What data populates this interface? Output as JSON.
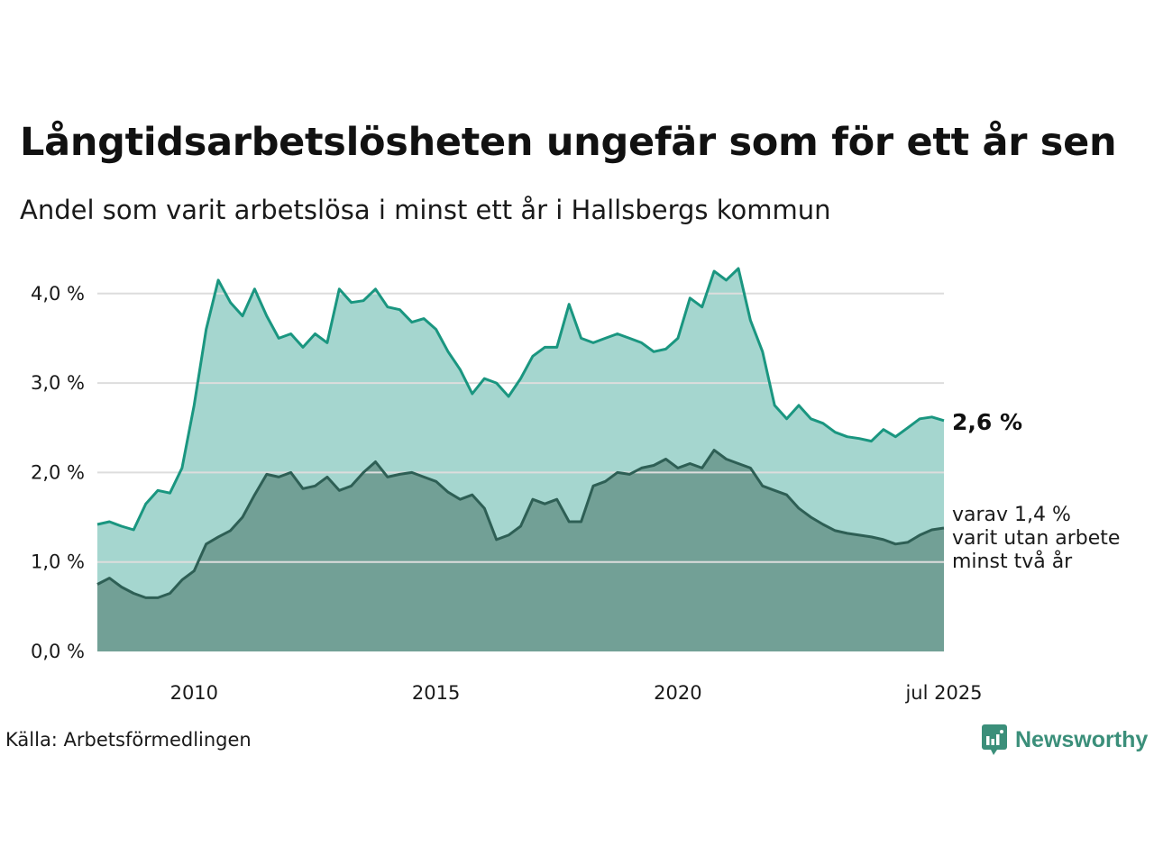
{
  "title": "Långtidsarbetslösheten ungefär som för ett år sen",
  "subtitle": "Andel som varit arbetslösa i minst ett år i Hallsbergs kommun",
  "source": "Källa: Arbetsförmedlingen",
  "brand": "Newsworthy",
  "colors": {
    "series1_line": "#1a9680",
    "series1_fill": "#a5d6cf",
    "series2_line": "#2e5f55",
    "series2_fill": "#72a096",
    "grid": "#dddddd",
    "brand": "#3b8f7a"
  },
  "chart_data": {
    "type": "area",
    "title": "Långtidsarbetslösheten ungefär som för ett år sen",
    "subtitle": "Andel som varit arbetslösa i minst ett år i Hallsbergs kommun",
    "xlim": [
      2008.0,
      2025.5
    ],
    "ylim": [
      0,
      4.3
    ],
    "yticks": [
      0,
      1,
      2,
      3,
      4
    ],
    "ytick_labels": [
      "0,0 %",
      "1,0 %",
      "2,0 %",
      "3,0 %",
      "4,0 %"
    ],
    "xticks": [
      2010,
      2015,
      2020,
      2025.5
    ],
    "xtick_labels": [
      "2010",
      "2015",
      "2020",
      "jul 2025"
    ],
    "grid": true,
    "series": [
      {
        "name": "Andel som varit arbetslösa i minst ett år",
        "end_label": "2,6 %",
        "points": [
          [
            2008.0,
            1.42
          ],
          [
            2008.25,
            1.45
          ],
          [
            2008.5,
            1.4
          ],
          [
            2008.75,
            1.36
          ],
          [
            2009.0,
            1.65
          ],
          [
            2009.25,
            1.8
          ],
          [
            2009.5,
            1.77
          ],
          [
            2009.75,
            2.05
          ],
          [
            2010.0,
            2.75
          ],
          [
            2010.25,
            3.6
          ],
          [
            2010.5,
            4.15
          ],
          [
            2010.75,
            3.9
          ],
          [
            2011.0,
            3.75
          ],
          [
            2011.25,
            4.05
          ],
          [
            2011.5,
            3.75
          ],
          [
            2011.75,
            3.5
          ],
          [
            2012.0,
            3.55
          ],
          [
            2012.25,
            3.4
          ],
          [
            2012.5,
            3.55
          ],
          [
            2012.75,
            3.45
          ],
          [
            2013.0,
            4.05
          ],
          [
            2013.25,
            3.9
          ],
          [
            2013.5,
            3.92
          ],
          [
            2013.75,
            4.05
          ],
          [
            2014.0,
            3.85
          ],
          [
            2014.25,
            3.82
          ],
          [
            2014.5,
            3.68
          ],
          [
            2014.75,
            3.72
          ],
          [
            2015.0,
            3.6
          ],
          [
            2015.25,
            3.35
          ],
          [
            2015.5,
            3.15
          ],
          [
            2015.75,
            2.88
          ],
          [
            2016.0,
            3.05
          ],
          [
            2016.25,
            3.0
          ],
          [
            2016.5,
            2.85
          ],
          [
            2016.75,
            3.05
          ],
          [
            2017.0,
            3.3
          ],
          [
            2017.25,
            3.4
          ],
          [
            2017.5,
            3.4
          ],
          [
            2017.75,
            3.88
          ],
          [
            2018.0,
            3.5
          ],
          [
            2018.25,
            3.45
          ],
          [
            2018.5,
            3.5
          ],
          [
            2018.75,
            3.55
          ],
          [
            2019.0,
            3.5
          ],
          [
            2019.25,
            3.45
          ],
          [
            2019.5,
            3.35
          ],
          [
            2019.75,
            3.38
          ],
          [
            2020.0,
            3.5
          ],
          [
            2020.25,
            3.95
          ],
          [
            2020.5,
            3.85
          ],
          [
            2020.75,
            4.25
          ],
          [
            2021.0,
            4.15
          ],
          [
            2021.25,
            4.28
          ],
          [
            2021.5,
            3.7
          ],
          [
            2021.75,
            3.35
          ],
          [
            2022.0,
            2.75
          ],
          [
            2022.25,
            2.6
          ],
          [
            2022.5,
            2.75
          ],
          [
            2022.75,
            2.6
          ],
          [
            2023.0,
            2.55
          ],
          [
            2023.25,
            2.45
          ],
          [
            2023.5,
            2.4
          ],
          [
            2023.75,
            2.38
          ],
          [
            2024.0,
            2.35
          ],
          [
            2024.25,
            2.48
          ],
          [
            2024.5,
            2.4
          ],
          [
            2024.75,
            2.5
          ],
          [
            2025.0,
            2.6
          ],
          [
            2025.25,
            2.62
          ],
          [
            2025.5,
            2.58
          ]
        ]
      },
      {
        "name": "varav 1,4 % varit utan arbete minst två år",
        "end_label_lines": [
          "varav 1,4 %",
          "varit utan arbete",
          "minst två år"
        ],
        "points": [
          [
            2008.0,
            0.75
          ],
          [
            2008.25,
            0.82
          ],
          [
            2008.5,
            0.72
          ],
          [
            2008.75,
            0.65
          ],
          [
            2009.0,
            0.6
          ],
          [
            2009.25,
            0.6
          ],
          [
            2009.5,
            0.65
          ],
          [
            2009.75,
            0.8
          ],
          [
            2010.0,
            0.9
          ],
          [
            2010.25,
            1.2
          ],
          [
            2010.5,
            1.28
          ],
          [
            2010.75,
            1.35
          ],
          [
            2011.0,
            1.5
          ],
          [
            2011.25,
            1.75
          ],
          [
            2011.5,
            1.98
          ],
          [
            2011.75,
            1.95
          ],
          [
            2012.0,
            2.0
          ],
          [
            2012.25,
            1.82
          ],
          [
            2012.5,
            1.85
          ],
          [
            2012.75,
            1.95
          ],
          [
            2013.0,
            1.8
          ],
          [
            2013.25,
            1.85
          ],
          [
            2013.5,
            2.0
          ],
          [
            2013.75,
            2.12
          ],
          [
            2014.0,
            1.95
          ],
          [
            2014.25,
            1.98
          ],
          [
            2014.5,
            2.0
          ],
          [
            2014.75,
            1.95
          ],
          [
            2015.0,
            1.9
          ],
          [
            2015.25,
            1.78
          ],
          [
            2015.5,
            1.7
          ],
          [
            2015.75,
            1.75
          ],
          [
            2016.0,
            1.6
          ],
          [
            2016.25,
            1.25
          ],
          [
            2016.5,
            1.3
          ],
          [
            2016.75,
            1.4
          ],
          [
            2017.0,
            1.7
          ],
          [
            2017.25,
            1.65
          ],
          [
            2017.5,
            1.7
          ],
          [
            2017.75,
            1.45
          ],
          [
            2018.0,
            1.45
          ],
          [
            2018.25,
            1.85
          ],
          [
            2018.5,
            1.9
          ],
          [
            2018.75,
            2.0
          ],
          [
            2019.0,
            1.98
          ],
          [
            2019.25,
            2.05
          ],
          [
            2019.5,
            2.08
          ],
          [
            2019.75,
            2.15
          ],
          [
            2020.0,
            2.05
          ],
          [
            2020.25,
            2.1
          ],
          [
            2020.5,
            2.05
          ],
          [
            2020.75,
            2.25
          ],
          [
            2021.0,
            2.15
          ],
          [
            2021.25,
            2.1
          ],
          [
            2021.5,
            2.05
          ],
          [
            2021.75,
            1.85
          ],
          [
            2022.0,
            1.8
          ],
          [
            2022.25,
            1.75
          ],
          [
            2022.5,
            1.6
          ],
          [
            2022.75,
            1.5
          ],
          [
            2023.0,
            1.42
          ],
          [
            2023.25,
            1.35
          ],
          [
            2023.5,
            1.32
          ],
          [
            2023.75,
            1.3
          ],
          [
            2024.0,
            1.28
          ],
          [
            2024.25,
            1.25
          ],
          [
            2024.5,
            1.2
          ],
          [
            2024.75,
            1.22
          ],
          [
            2025.0,
            1.3
          ],
          [
            2025.25,
            1.36
          ],
          [
            2025.5,
            1.38
          ]
        ]
      }
    ]
  }
}
